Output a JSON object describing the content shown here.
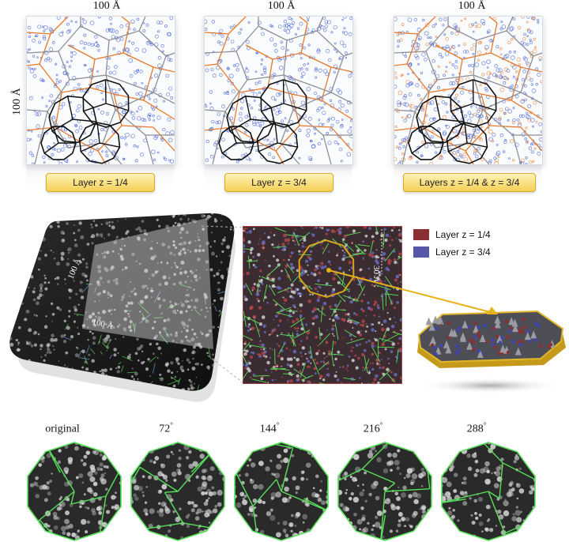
{
  "scale_bars": {
    "top": "100 Å",
    "side": "100 Å"
  },
  "layer_panels": [
    {
      "label": "Layer z = 1/4"
    },
    {
      "label": "Layer z = 3/4"
    },
    {
      "label": "Layers z = 1/4 & z = 3/4"
    }
  ],
  "perspective_scale": {
    "a": "100 Å",
    "b": "100 Å"
  },
  "zoom_scale": "30 Å",
  "legend": [
    {
      "label": "Layer z = 1/4",
      "color": "#8b2f32"
    },
    {
      "label": "Layer z = 3/4",
      "color": "#5458a6"
    }
  ],
  "rotations": [
    {
      "label": "original",
      "deg": ""
    },
    {
      "label": "72",
      "deg": "°"
    },
    {
      "label": "144",
      "deg": "°"
    },
    {
      "label": "216",
      "deg": "°"
    },
    {
      "label": "288",
      "deg": "°"
    }
  ],
  "colors": {
    "tiling_orange": "#e8782a",
    "tiling_gray": "#8f8f96",
    "tiling_black": "#111111",
    "atom_blue": "#3b5bd6",
    "highlight_gold": "#d8a51c",
    "tiling_green": "#58e05a"
  }
}
